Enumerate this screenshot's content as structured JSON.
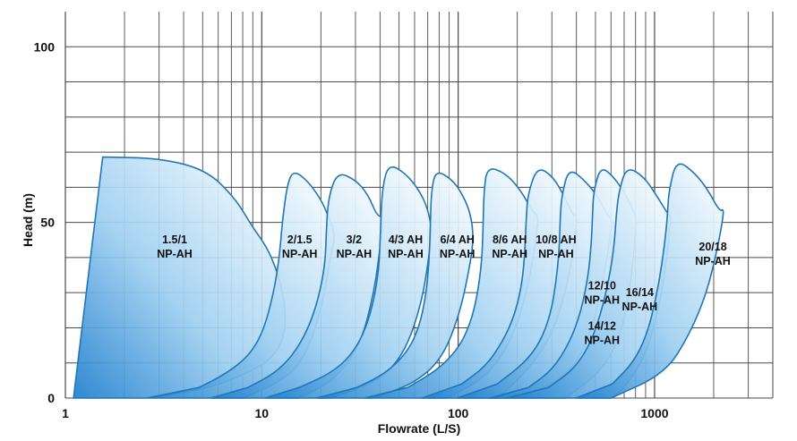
{
  "chart_data": {
    "type": "area",
    "xlabel": "Flowrate (L/S)",
    "ylabel": "Head (m)",
    "xscale": "log",
    "xlim": [
      1,
      4000
    ],
    "ylim": [
      0,
      110
    ],
    "xticks": [
      {
        "value": 1,
        "label": "1"
      },
      {
        "value": 10,
        "label": "10"
      },
      {
        "value": 100,
        "label": "100"
      },
      {
        "value": 1000,
        "label": "1000"
      }
    ],
    "yticks": [
      {
        "value": 0,
        "label": "0"
      },
      {
        "value": 50,
        "label": "50"
      },
      {
        "value": 100,
        "label": "100"
      }
    ],
    "grid": true,
    "colors": {
      "curve": "#1f77b8",
      "fill_light": "#ffffff",
      "fill_dark": "#1e7fce",
      "grid": "#4a4a4a"
    },
    "series": [
      {
        "label": [
          "1.5/1",
          "NP-AH"
        ],
        "label_at": [
          3.6,
          44
        ],
        "points": [
          [
            1.1,
            0
          ],
          [
            1.55,
            68.6
          ],
          [
            3.0,
            68.3
          ],
          [
            5.2,
            65
          ],
          [
            7.3,
            57
          ],
          [
            8.9,
            49
          ],
          [
            10.6,
            43
          ],
          [
            11.8,
            37
          ],
          [
            12.7,
            31
          ],
          [
            13.2,
            24
          ],
          [
            13.1,
            19
          ],
          [
            12.2,
            14
          ],
          [
            10.5,
            10
          ],
          [
            8.3,
            7
          ],
          [
            6.3,
            4.2
          ],
          [
            4.6,
            2.2
          ],
          [
            2.6,
            0
          ]
        ]
      },
      {
        "label": [
          "2/1.5",
          "NP-AH"
        ],
        "label_at": [
          15.6,
          44
        ],
        "points": [
          [
            2.6,
            0
          ],
          [
            4.8,
            3
          ],
          [
            6.6,
            7
          ],
          [
            8.6,
            12
          ],
          [
            10.2,
            19
          ],
          [
            11.5,
            30
          ],
          [
            12.3,
            40
          ],
          [
            12.7,
            50
          ],
          [
            13.5,
            61
          ],
          [
            14.5,
            64.8
          ],
          [
            17.0,
            62
          ],
          [
            19.8,
            57
          ],
          [
            22.0,
            51.5
          ],
          [
            23.7,
            46
          ],
          [
            22.5,
            41
          ],
          [
            20.3,
            26
          ],
          [
            16.5,
            11
          ],
          [
            12.4,
            4.5
          ],
          [
            8.0,
            0
          ]
        ]
      },
      {
        "label": [
          "3/2",
          "NP-AH"
        ],
        "label_at": [
          29.5,
          44
        ],
        "points": [
          [
            5.5,
            0
          ],
          [
            8.5,
            3
          ],
          [
            11.6,
            7
          ],
          [
            14.3,
            12
          ],
          [
            17.0,
            19
          ],
          [
            19.4,
            28
          ],
          [
            21.0,
            38
          ],
          [
            21.3,
            47
          ],
          [
            21.8,
            57
          ],
          [
            24.3,
            64.5
          ],
          [
            30.2,
            62
          ],
          [
            34.7,
            58
          ],
          [
            38.5,
            52
          ],
          [
            41.5,
            51.5
          ],
          [
            40.3,
            44
          ],
          [
            37.3,
            30
          ],
          [
            31.8,
            15
          ],
          [
            23.3,
            5
          ],
          [
            15.5,
            0
          ]
        ]
      },
      {
        "label": [
          "4/3 AH",
          "NP-AH"
        ],
        "label_at": [
          54,
          44
        ],
        "points": [
          [
            10.4,
            0
          ],
          [
            15.5,
            3
          ],
          [
            22.4,
            7
          ],
          [
            28.4,
            12
          ],
          [
            33.5,
            19
          ],
          [
            37.3,
            28
          ],
          [
            39.5,
            37
          ],
          [
            40.2,
            47
          ],
          [
            40.9,
            59
          ],
          [
            44.0,
            66.8
          ],
          [
            54.0,
            64
          ],
          [
            63.6,
            59
          ],
          [
            69.9,
            54
          ],
          [
            73.5,
            48
          ],
          [
            71.3,
            41
          ],
          [
            65.2,
            27
          ],
          [
            53.5,
            13
          ],
          [
            40.0,
            5
          ],
          [
            22.4,
            0
          ]
        ]
      },
      {
        "label": [
          "6/4 AH",
          "NP-AH"
        ],
        "label_at": [
          99,
          44
        ],
        "points": [
          [
            19.0,
            0
          ],
          [
            30.5,
            3
          ],
          [
            42.7,
            7
          ],
          [
            55.0,
            13
          ],
          [
            63.2,
            20
          ],
          [
            68.4,
            29
          ],
          [
            71.2,
            39
          ],
          [
            72.2,
            49
          ],
          [
            73.0,
            59
          ],
          [
            77.0,
            65
          ],
          [
            94.0,
            62
          ],
          [
            105,
            58
          ],
          [
            115,
            53
          ],
          [
            120,
            46
          ],
          [
            115,
            38
          ],
          [
            102,
            24
          ],
          [
            82.5,
            11
          ],
          [
            59.0,
            4
          ],
          [
            36.7,
            0
          ]
        ]
      },
      {
        "label": [
          "8/6 AH",
          "NP-AH"
        ],
        "label_at": [
          183,
          44
        ],
        "points": [
          [
            33.3,
            0
          ],
          [
            55.3,
            3
          ],
          [
            78.5,
            8
          ],
          [
            100,
            14
          ],
          [
            115,
            21
          ],
          [
            125,
            29
          ],
          [
            132,
            39
          ],
          [
            134,
            49
          ],
          [
            135,
            58
          ],
          [
            140,
            66
          ],
          [
            175,
            64
          ],
          [
            209,
            59
          ],
          [
            240,
            53
          ],
          [
            257,
            52
          ],
          [
            249,
            45
          ],
          [
            228,
            32
          ],
          [
            190,
            17
          ],
          [
            140,
            6
          ],
          [
            88,
            0
          ]
        ]
      },
      {
        "label": [
          "10/8 AH",
          "NP-AH"
        ],
        "label_at": [
          315,
          44
        ],
        "points": [
          [
            65.5,
            0
          ],
          [
            104,
            4
          ],
          [
            138,
            9
          ],
          [
            168,
            16
          ],
          [
            192,
            23
          ],
          [
            209,
            31
          ],
          [
            218,
            40
          ],
          [
            222,
            51
          ],
          [
            226,
            58
          ],
          [
            253,
            66
          ],
          [
            305,
            63
          ],
          [
            350,
            57
          ],
          [
            385,
            52
          ],
          [
            403,
            52
          ],
          [
            391,
            44
          ],
          [
            359,
            32
          ],
          [
            302,
            18
          ],
          [
            227,
            8
          ],
          [
            160,
            0
          ]
        ]
      },
      {
        "label": [
          "12/10",
          "NP-AH"
        ],
        "label_at": [
          540,
          31
        ],
        "points": [
          [
            99,
            0
          ],
          [
            158,
            4
          ],
          [
            218,
            10
          ],
          [
            262,
            16
          ],
          [
            296,
            24
          ],
          [
            315,
            33
          ],
          [
            327,
            42
          ],
          [
            331,
            52
          ],
          [
            338,
            58
          ],
          [
            366,
            65.5
          ],
          [
            441,
            62
          ],
          [
            519,
            57
          ],
          [
            577,
            52
          ],
          [
            610,
            51
          ],
          [
            586,
            44
          ],
          [
            536,
            30
          ],
          [
            448,
            14
          ],
          [
            320,
            4
          ],
          [
            180,
            0
          ]
        ]
      },
      {
        "label": [
          "14/12",
          "NP-AH"
        ],
        "label_at": [
          540,
          19.5
        ],
        "points": [
          [
            145,
            0
          ],
          [
            228,
            3
          ],
          [
            302,
            8
          ],
          [
            371,
            16
          ],
          [
            424,
            25
          ],
          [
            460,
            35
          ],
          [
            477,
            44
          ],
          [
            484,
            53
          ],
          [
            490,
            59
          ],
          [
            532,
            66
          ],
          [
            620,
            63
          ],
          [
            711,
            58
          ],
          [
            786,
            53
          ],
          [
            808,
            51
          ],
          [
            787,
            42
          ],
          [
            741,
            29
          ],
          [
            656,
            16
          ],
          [
            522,
            7
          ],
          [
            350,
            0
          ]
        ]
      },
      {
        "label": [
          "16/14",
          "NP-AH"
        ],
        "label_at": [
          840,
          29
        ],
        "points": [
          [
            178,
            0
          ],
          [
            288,
            3
          ],
          [
            385,
            8
          ],
          [
            467,
            15
          ],
          [
            533,
            24
          ],
          [
            587,
            34
          ],
          [
            622,
            43
          ],
          [
            640,
            53
          ],
          [
            660,
            59
          ],
          [
            720,
            66
          ],
          [
            886,
            63
          ],
          [
            1041,
            57
          ],
          [
            1180,
            52
          ],
          [
            1215,
            52
          ],
          [
            1158,
            40
          ],
          [
            1051,
            25
          ],
          [
            882,
            11
          ],
          [
            681,
            2
          ],
          [
            600,
            0
          ]
        ]
      },
      {
        "label": [
          "20/18",
          "NP-AH"
        ],
        "label_at": [
          1980,
          42
        ],
        "points": [
          [
            398,
            0
          ],
          [
            608,
            4
          ],
          [
            778,
            10
          ],
          [
            914,
            18
          ],
          [
            1013,
            28
          ],
          [
            1090,
            38
          ],
          [
            1147,
            48
          ],
          [
            1168,
            54
          ],
          [
            1185,
            59
          ],
          [
            1292,
            68
          ],
          [
            1612,
            64
          ],
          [
            1880,
            59
          ],
          [
            2153,
            53
          ],
          [
            2271,
            54
          ],
          [
            2117,
            44
          ],
          [
            1849,
            30
          ],
          [
            1503,
            18
          ],
          [
            1131,
            7
          ],
          [
            600,
            0
          ]
        ]
      }
    ]
  }
}
